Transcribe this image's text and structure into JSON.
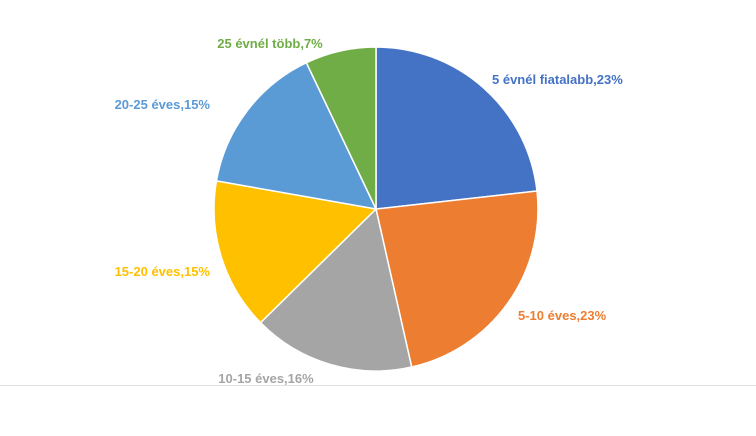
{
  "chart_data": {
    "type": "pie",
    "title": "",
    "slices": [
      {
        "label": "5 évnél fiatalabb,23%",
        "value": 23,
        "color": "#4472C4"
      },
      {
        "label": "5-10 éves,23%",
        "value": 23,
        "color": "#ED7D31"
      },
      {
        "label": "10-15 éves,16%",
        "value": 16,
        "color": "#A5A5A5"
      },
      {
        "label": "15-20 éves,15%",
        "value": 15,
        "color": "#FFC000"
      },
      {
        "label": "20-25 éves,15%",
        "value": 15,
        "color": "#5B9BD5"
      },
      {
        "label": "25 évnél több,7%",
        "value": 7,
        "color": "#70AD47"
      }
    ],
    "start_angle_deg": -90,
    "direction": "clockwise",
    "legend": "none"
  }
}
